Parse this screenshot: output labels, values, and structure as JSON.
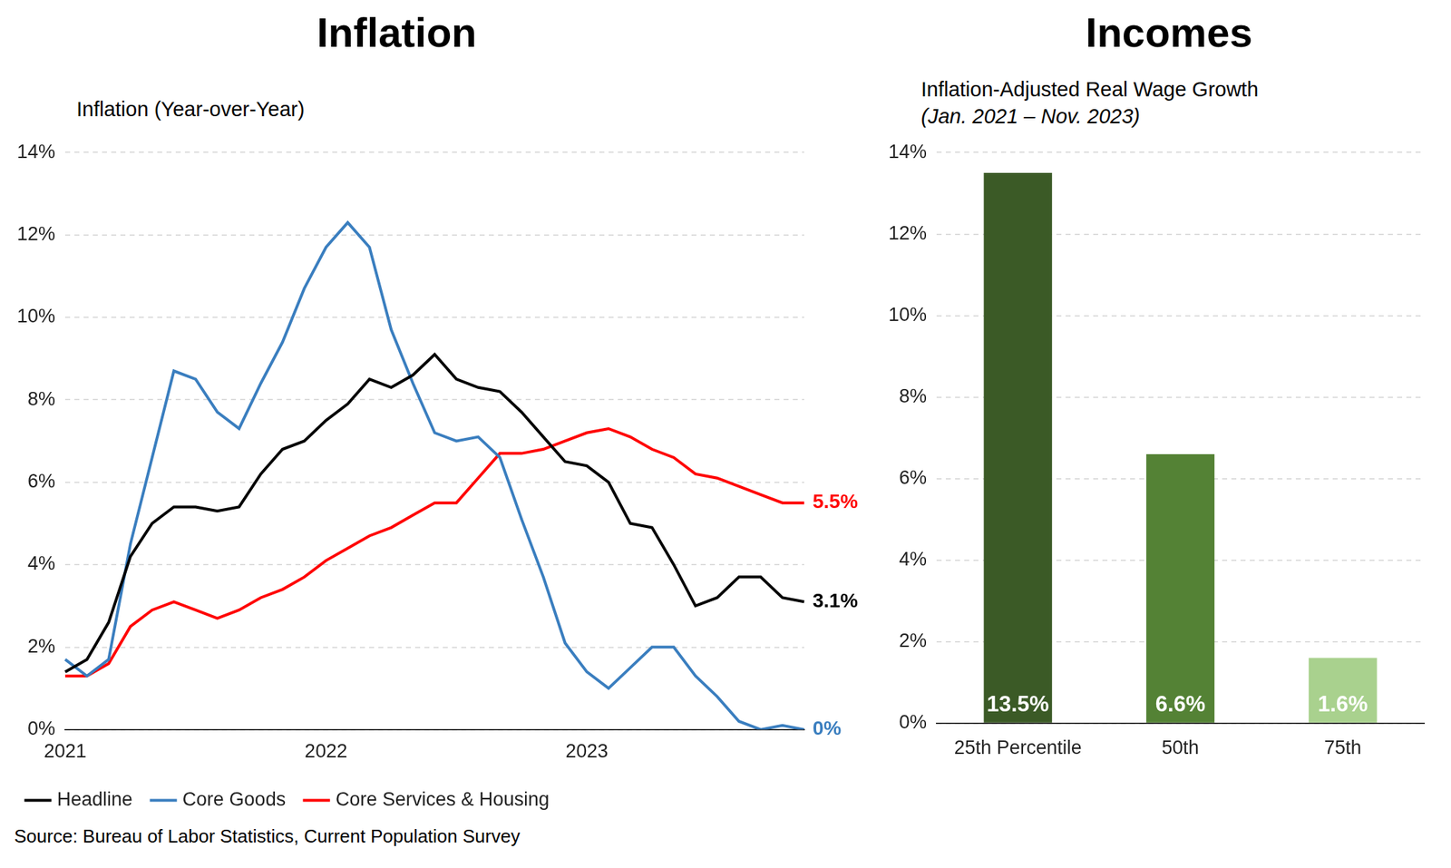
{
  "chart_data": [
    {
      "type": "line",
      "title": "Inflation",
      "subtitle": "Inflation (Year-over-Year)",
      "categories": [
        "2021",
        null,
        null,
        null,
        null,
        null,
        null,
        null,
        null,
        null,
        null,
        null,
        "2022",
        null,
        null,
        null,
        null,
        null,
        null,
        null,
        null,
        null,
        null,
        null,
        "2023",
        null,
        null,
        null,
        null,
        null,
        null,
        null,
        null,
        null,
        null
      ],
      "series": [
        {
          "name": "Headline",
          "color": "#000000",
          "end_label": "3.1%",
          "values": [
            1.4,
            1.7,
            2.6,
            4.2,
            5.0,
            5.4,
            5.4,
            5.3,
            5.4,
            6.2,
            6.8,
            7.0,
            7.5,
            7.9,
            8.5,
            8.3,
            8.6,
            9.1,
            8.5,
            8.3,
            8.2,
            7.7,
            7.1,
            6.5,
            6.4,
            6.0,
            5.0,
            4.9,
            4.0,
            3.0,
            3.2,
            3.7,
            3.7,
            3.2,
            3.1
          ]
        },
        {
          "name": "Core Goods",
          "color": "#3a7ebf",
          "end_label": "0%",
          "values": [
            1.7,
            1.3,
            1.7,
            4.5,
            6.6,
            8.7,
            8.5,
            7.7,
            7.3,
            8.4,
            9.4,
            10.7,
            11.7,
            12.3,
            11.7,
            9.7,
            8.4,
            7.2,
            7.0,
            7.1,
            6.6,
            5.1,
            3.7,
            2.1,
            1.4,
            1.0,
            1.5,
            2.0,
            2.0,
            1.3,
            0.8,
            0.2,
            0.0,
            0.1,
            0.0
          ]
        },
        {
          "name": "Core Services & Housing",
          "color": "#ff0000",
          "end_label": "5.5%",
          "values": [
            1.3,
            1.3,
            1.6,
            2.5,
            2.9,
            3.1,
            2.9,
            2.7,
            2.9,
            3.2,
            3.4,
            3.7,
            4.1,
            4.4,
            4.7,
            4.9,
            5.2,
            5.5,
            5.5,
            6.1,
            6.7,
            6.7,
            6.8,
            7.0,
            7.2,
            7.3,
            7.1,
            6.8,
            6.6,
            6.2,
            6.1,
            5.9,
            5.7,
            5.5,
            5.5
          ]
        }
      ],
      "ylim": [
        0,
        14
      ],
      "yticks": [
        {
          "value": 0,
          "label": "0%"
        },
        {
          "value": 2,
          "label": "2%"
        },
        {
          "value": 4,
          "label": "4%"
        },
        {
          "value": 6,
          "label": "6%"
        },
        {
          "value": 8,
          "label": "8%"
        },
        {
          "value": 10,
          "label": "10%"
        },
        {
          "value": 12,
          "label": "12%"
        },
        {
          "value": 14,
          "label": "14%"
        }
      ],
      "grid": true,
      "legend": "bottom"
    },
    {
      "type": "bar",
      "title": "Incomes",
      "subtitle": "Inflation-Adjusted Real Wage Growth",
      "note": "(Jan. 2021 – Nov. 2023)",
      "categories": [
        "25th Percentile",
        "50th",
        "75th"
      ],
      "values": [
        13.5,
        6.6,
        1.6
      ],
      "value_labels": [
        "13.5%",
        "6.6%",
        "1.6%"
      ],
      "colors": [
        "#3b5a26",
        "#548235",
        "#a9d18e"
      ],
      "data_labels": true,
      "ylim": [
        0,
        14
      ],
      "yticks": [
        {
          "value": 0,
          "label": "0%"
        },
        {
          "value": 2,
          "label": "2%"
        },
        {
          "value": 4,
          "label": "4%"
        },
        {
          "value": 6,
          "label": "6%"
        },
        {
          "value": 8,
          "label": "8%"
        },
        {
          "value": 10,
          "label": "10%"
        },
        {
          "value": 12,
          "label": "12%"
        },
        {
          "value": 14,
          "label": "14%"
        }
      ],
      "grid": true
    }
  ],
  "source": "Source: Bureau of Labor Statistics, Current Population Survey"
}
